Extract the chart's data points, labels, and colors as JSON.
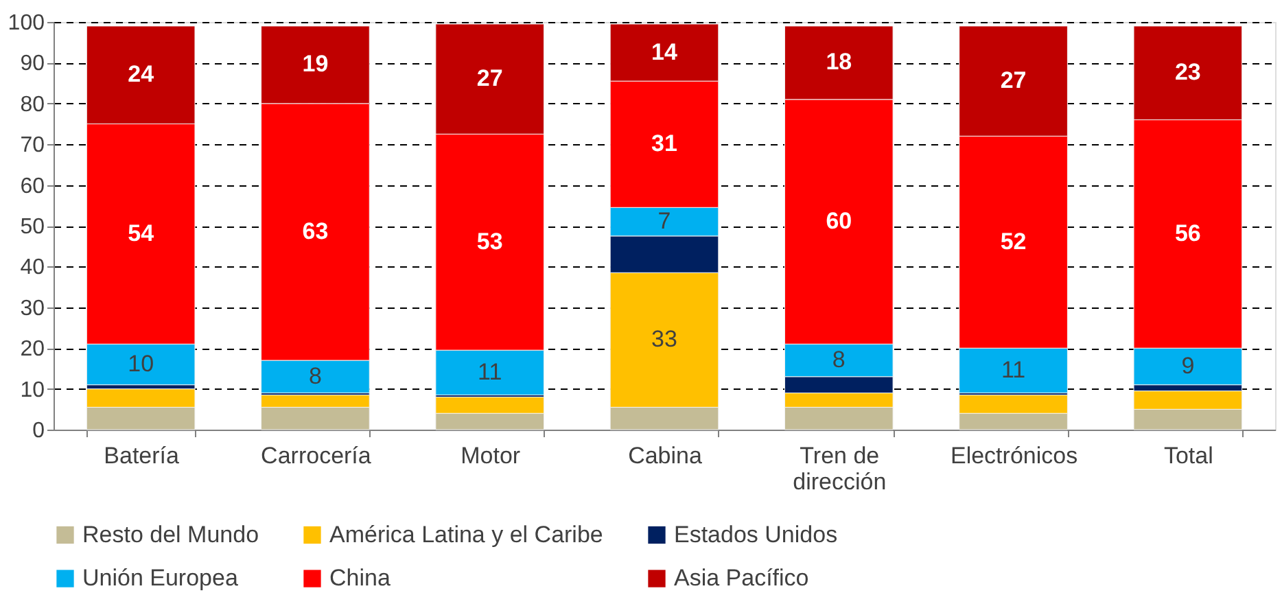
{
  "chart_data": {
    "type": "bar",
    "stacked": true,
    "categories": [
      "Batería",
      "Carrocería",
      "Motor",
      "Cabina",
      "Tren de dirección",
      "Electrónicos",
      "Total"
    ],
    "series": [
      {
        "name": "Resto del Mundo",
        "color": "#c4bc96",
        "values": [
          5.5,
          5.5,
          4,
          5.5,
          5.5,
          4,
          5
        ]
      },
      {
        "name": "América Latina y el Caribe",
        "color": "#ffc000",
        "values": [
          4.5,
          3,
          4,
          33,
          3.5,
          4.5,
          4.5
        ],
        "value_labels": [
          null,
          null,
          null,
          "33",
          null,
          null,
          null
        ]
      },
      {
        "name": "Estados Unidos",
        "color": "#002060",
        "values": [
          1,
          0.5,
          0.5,
          9,
          4,
          0.5,
          1.5
        ]
      },
      {
        "name": "Unión Europea",
        "color": "#00b0f0",
        "values": [
          10,
          8,
          11,
          7,
          8,
          11,
          9
        ],
        "value_labels": [
          "10",
          "8",
          "11",
          "7",
          "8",
          "11",
          "9"
        ]
      },
      {
        "name": "China",
        "color": "#ff0000",
        "values": [
          54,
          63,
          53,
          31,
          60,
          52,
          56
        ],
        "value_labels": [
          "54",
          "63",
          "53",
          "31",
          "60",
          "52",
          "56"
        ]
      },
      {
        "name": "Asia Pacífico",
        "color": "#c00000",
        "values": [
          24,
          19,
          27,
          14,
          18,
          27,
          23
        ],
        "value_labels": [
          "24",
          "19",
          "27",
          "14",
          "18",
          "27",
          "23"
        ]
      }
    ],
    "ylim": [
      0,
      100
    ],
    "yticks": [
      0,
      10,
      20,
      30,
      40,
      50,
      60,
      70,
      80,
      90,
      100
    ],
    "grid": "y",
    "legend": "bottom"
  }
}
